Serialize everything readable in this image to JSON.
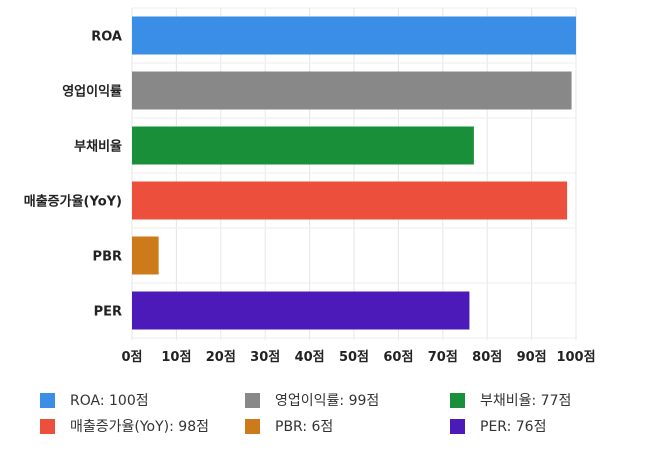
{
  "chart_data": {
    "type": "bar",
    "orientation": "horizontal",
    "categories": [
      "ROA",
      "영업이익률",
      "부채비율",
      "매출증가율(YoY)",
      "PBR",
      "PER"
    ],
    "values": [
      100,
      99,
      77,
      98,
      6,
      76
    ],
    "colors": [
      "#3a8ee6",
      "#888888",
      "#1a8f3a",
      "#ec4f3b",
      "#cc7a1a",
      "#4c1ab8"
    ],
    "xlim": [
      0,
      100
    ],
    "x_ticks": [
      0,
      10,
      20,
      30,
      40,
      50,
      60,
      70,
      80,
      90,
      100
    ],
    "tick_labels": [
      "0점",
      "10점",
      "20점",
      "30점",
      "40점",
      "50점",
      "60점",
      "70점",
      "80점",
      "90점",
      "100점"
    ],
    "grid": true,
    "legend_position": "bottom",
    "legend": [
      "ROA: 100점",
      "영업이익률: 99점",
      "부채비율: 77점",
      "매출증가율(YoY): 98점",
      "PBR: 6점",
      "PER: 76점"
    ]
  }
}
